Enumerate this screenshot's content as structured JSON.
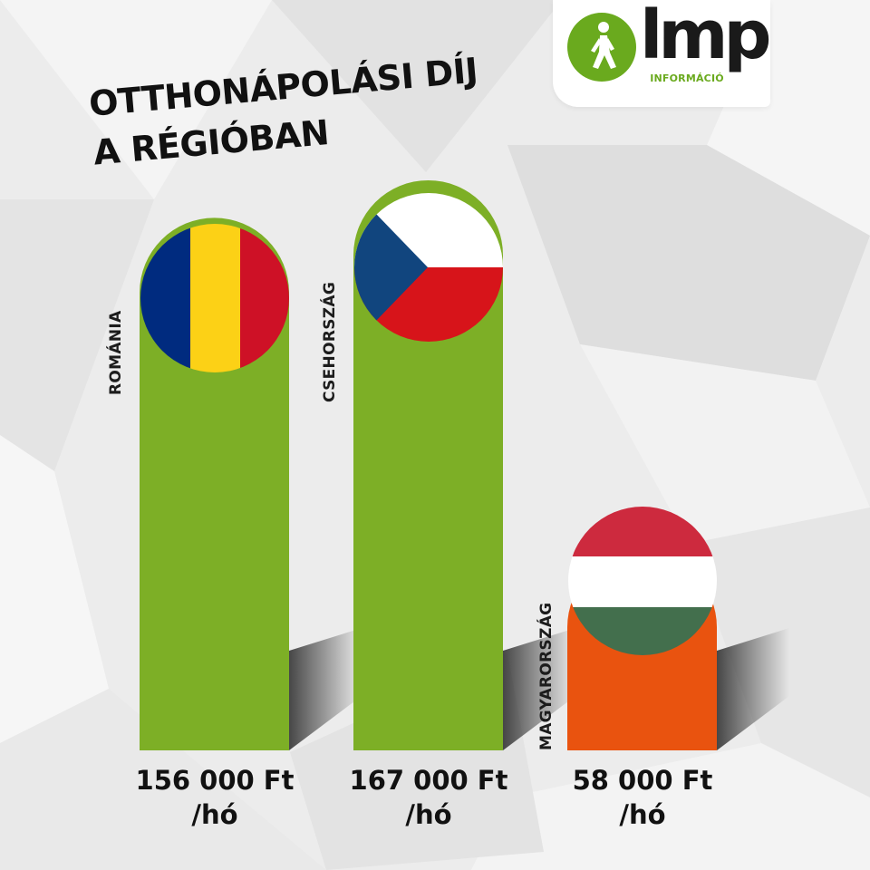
{
  "logo": {
    "word": "lmp",
    "subtitle": "INFORMÁCIÓ"
  },
  "title_lines": [
    "OTTHONÁPOLÁSI DÍJ",
    "A RÉGIÓBAN"
  ],
  "colors": {
    "green": "#7daf26",
    "orange": "#e9530f",
    "logo_green": "#6aaa1e",
    "text": "#111111"
  },
  "chart_data": {
    "type": "bar",
    "title": "OTTHONÁPOLÁSI DÍJ A RÉGIÓBAN",
    "categories": [
      "ROMÁNIA",
      "CSEHORSZÁG",
      "MAGYARORSZÁG"
    ],
    "values": [
      156000,
      167000,
      58000
    ],
    "value_labels": [
      "156 000 Ft",
      "167 000 Ft",
      "58 000 Ft"
    ],
    "unit_label": "/hó",
    "bar_colors": [
      "#7daf26",
      "#7daf26",
      "#e9530f"
    ],
    "flags": [
      "romania-flag-icon",
      "czech-flag-icon",
      "hungary-flag-icon"
    ],
    "ylim": [
      0,
      180000
    ],
    "grid": false,
    "legend": "none"
  }
}
